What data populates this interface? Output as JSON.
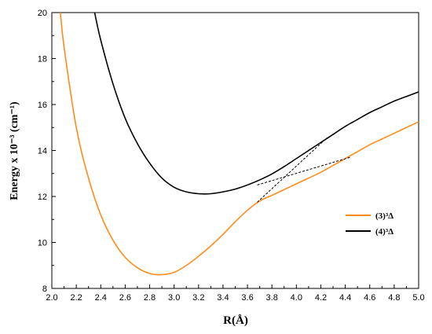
{
  "chart_data": {
    "type": "line",
    "xlabel": "R(Å)",
    "ylabel": "Energy x 10⁻³ (cm⁻¹)",
    "xlim": [
      2.0,
      5.0
    ],
    "ylim": [
      8,
      20
    ],
    "xticks": [
      "2.0",
      "2.2",
      "2.4",
      "2.6",
      "2.8",
      "3.0",
      "3.2",
      "3.4",
      "3.6",
      "3.8",
      "4.0",
      "4.2",
      "4.4",
      "4.6",
      "4.8",
      "5.0"
    ],
    "yticks": [
      "8",
      "10",
      "12",
      "14",
      "16",
      "18",
      "20"
    ],
    "grid": false,
    "legend_position": "right",
    "series": [
      {
        "name": "(3)³Δ",
        "color": "#ff8c1a",
        "x": [
          2.07,
          2.1,
          2.2,
          2.3,
          2.4,
          2.5,
          2.6,
          2.7,
          2.8,
          2.9,
          3.0,
          3.1,
          3.2,
          3.3,
          3.4,
          3.5,
          3.6,
          3.7,
          3.8,
          3.9,
          4.0,
          4.1,
          4.2,
          4.3,
          4.4,
          4.5,
          4.6,
          4.7,
          4.8,
          4.9,
          5.0
        ],
        "y": [
          20.0,
          18.5,
          15.0,
          12.8,
          11.2,
          10.1,
          9.35,
          8.9,
          8.65,
          8.6,
          8.7,
          9.0,
          9.4,
          9.85,
          10.35,
          10.9,
          11.4,
          11.8,
          12.05,
          12.3,
          12.55,
          12.8,
          13.05,
          13.35,
          13.65,
          13.95,
          14.25,
          14.5,
          14.75,
          15.0,
          15.25
        ]
      },
      {
        "name": "(4)³Δ",
        "color": "#000000",
        "x": [
          2.35,
          2.4,
          2.5,
          2.6,
          2.7,
          2.8,
          2.9,
          3.0,
          3.1,
          3.2,
          3.3,
          3.4,
          3.5,
          3.6,
          3.7,
          3.8,
          3.9,
          4.0,
          4.1,
          4.2,
          4.3,
          4.4,
          4.5,
          4.6,
          4.7,
          4.8,
          4.9,
          5.0
        ],
        "y": [
          20.0,
          18.8,
          16.9,
          15.4,
          14.3,
          13.45,
          12.8,
          12.4,
          12.2,
          12.12,
          12.12,
          12.2,
          12.32,
          12.5,
          12.72,
          12.98,
          13.3,
          13.65,
          14.0,
          14.35,
          14.7,
          15.05,
          15.35,
          15.65,
          15.9,
          16.15,
          16.35,
          16.55
        ]
      }
    ],
    "annotations": [
      {
        "style": "dashed",
        "x": [
          3.68,
          4.25
        ],
        "y": [
          11.75,
          14.55
        ]
      },
      {
        "style": "dashed",
        "x": [
          3.68,
          4.45
        ],
        "y": [
          12.5,
          13.72
        ]
      }
    ]
  }
}
